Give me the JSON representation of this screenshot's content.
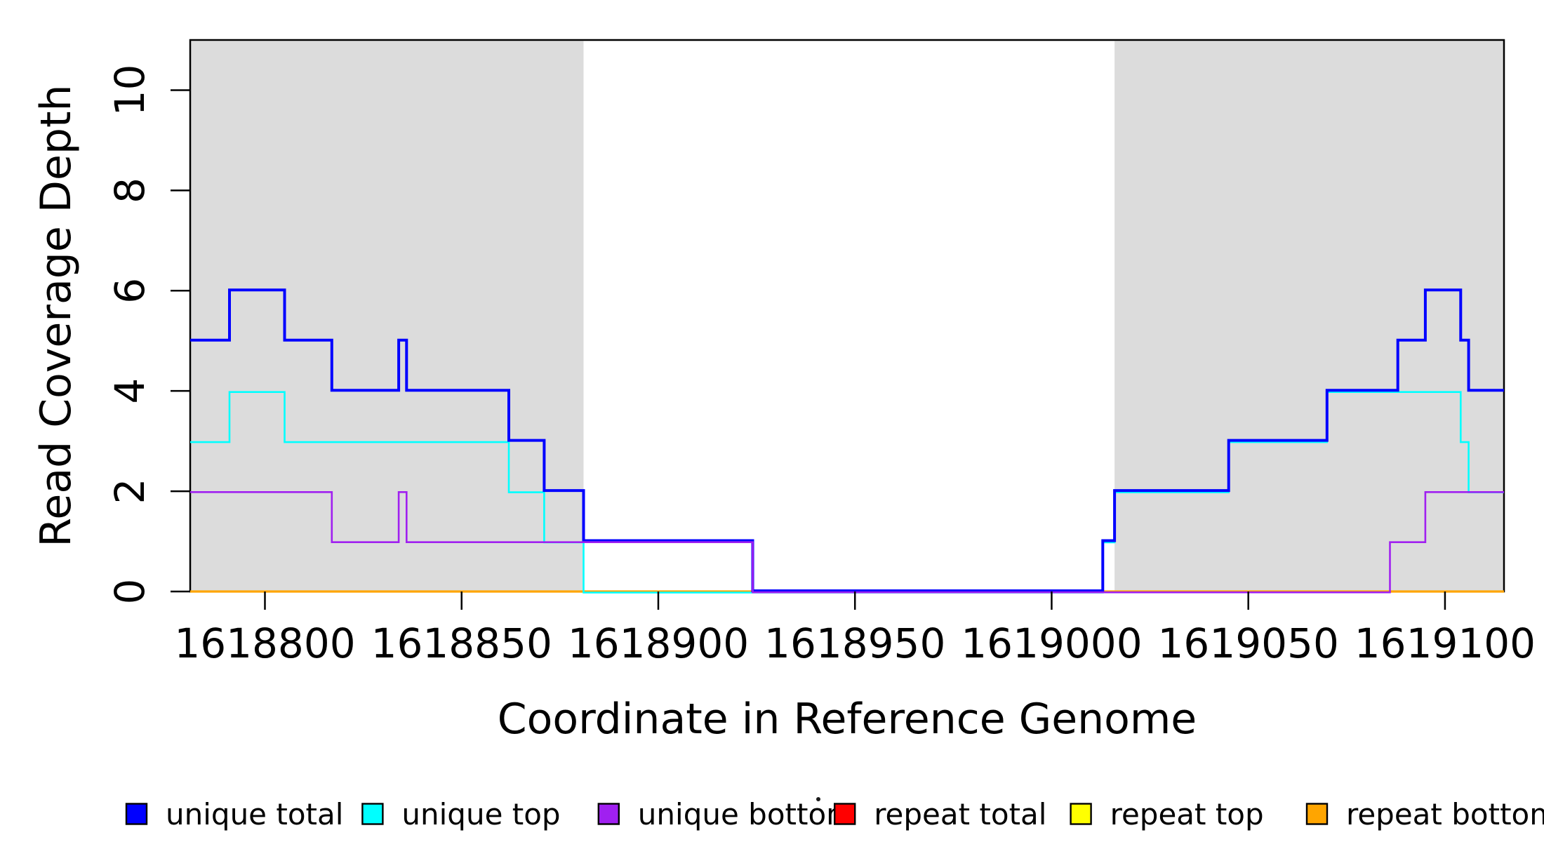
{
  "figure": {
    "background": "#ffffff",
    "plot_bg": "#ffffff",
    "band_color": "#DCDCDC",
    "border_color": "#000000",
    "text_color": "#000000"
  },
  "chart_data": {
    "type": "line",
    "subtype": "step-coverage-plot",
    "title": "",
    "xlabel": "Coordinate in Reference Genome",
    "ylabel": "Read Coverage Depth",
    "xlim": [
      1618781,
      1619115
    ],
    "ylim": [
      0,
      11
    ],
    "grid": false,
    "x_ticks": [
      1618800,
      1618850,
      1618900,
      1618950,
      1619000,
      1619050,
      1619100
    ],
    "y_ticks": [
      0,
      2,
      4,
      6,
      8,
      10
    ],
    "shaded_regions": [
      {
        "name": "left-repeat-region",
        "from": 1618781,
        "to": 1618881,
        "color": "#DCDCDC"
      },
      {
        "name": "right-repeat-region",
        "from": 1619016,
        "to": 1619115,
        "color": "#DCDCDC"
      }
    ],
    "series": [
      {
        "name": "repeat total",
        "color": "#FF0000",
        "lwd": 2.6,
        "steps": [
          {
            "from": 1618781,
            "to": 1619115,
            "value": 0
          }
        ]
      },
      {
        "name": "repeat top",
        "color": "#FFFF00",
        "lwd": 2.6,
        "steps": [
          {
            "from": 1618781,
            "to": 1619115,
            "value": 0
          }
        ]
      },
      {
        "name": "repeat bottom",
        "color": "#FFA500",
        "lwd": 3.2,
        "steps": [
          {
            "from": 1618781,
            "to": 1619115,
            "value": 0
          }
        ]
      },
      {
        "name": "unique top",
        "color": "#00FFFF",
        "lwd": 2.6,
        "steps": [
          {
            "from": 1618781,
            "to": 1618791,
            "value": 3
          },
          {
            "from": 1618791,
            "to": 1618805,
            "value": 4
          },
          {
            "from": 1618805,
            "to": 1618862,
            "value": 3
          },
          {
            "from": 1618862,
            "to": 1618871,
            "value": 2
          },
          {
            "from": 1618871,
            "to": 1618881,
            "value": 1
          },
          {
            "from": 1618881,
            "to": 1619013,
            "value": 0
          },
          {
            "from": 1619013,
            "to": 1619016,
            "value": 1
          },
          {
            "from": 1619016,
            "to": 1619045,
            "value": 2
          },
          {
            "from": 1619045,
            "to": 1619070,
            "value": 3
          },
          {
            "from": 1619070,
            "to": 1619104,
            "value": 4
          },
          {
            "from": 1619104,
            "to": 1619106,
            "value": 3
          },
          {
            "from": 1619106,
            "to": 1619115,
            "value": 2
          }
        ]
      },
      {
        "name": "unique total",
        "color": "#0000FF",
        "lwd": 4,
        "steps": [
          {
            "from": 1618781,
            "to": 1618791,
            "value": 5
          },
          {
            "from": 1618791,
            "to": 1618805,
            "value": 6
          },
          {
            "from": 1618805,
            "to": 1618817,
            "value": 5
          },
          {
            "from": 1618817,
            "to": 1618834,
            "value": 4
          },
          {
            "from": 1618834,
            "to": 1618836,
            "value": 5
          },
          {
            "from": 1618836,
            "to": 1618862,
            "value": 4
          },
          {
            "from": 1618862,
            "to": 1618871,
            "value": 3
          },
          {
            "from": 1618871,
            "to": 1618881,
            "value": 2
          },
          {
            "from": 1618881,
            "to": 1618924,
            "value": 1
          },
          {
            "from": 1618924,
            "to": 1619013,
            "value": 0
          },
          {
            "from": 1619013,
            "to": 1619016,
            "value": 1
          },
          {
            "from": 1619016,
            "to": 1619045,
            "value": 2
          },
          {
            "from": 1619045,
            "to": 1619070,
            "value": 3
          },
          {
            "from": 1619070,
            "to": 1619088,
            "value": 4
          },
          {
            "from": 1619088,
            "to": 1619095,
            "value": 5
          },
          {
            "from": 1619095,
            "to": 1619104,
            "value": 6
          },
          {
            "from": 1619104,
            "to": 1619106,
            "value": 5
          },
          {
            "from": 1619106,
            "to": 1619115,
            "value": 4
          }
        ]
      },
      {
        "name": "unique bottom",
        "color": "#A020F0",
        "lwd": 2.6,
        "steps": [
          {
            "from": 1618781,
            "to": 1618817,
            "value": 2
          },
          {
            "from": 1618817,
            "to": 1618834,
            "value": 1
          },
          {
            "from": 1618834,
            "to": 1618836,
            "value": 2
          },
          {
            "from": 1618836,
            "to": 1618924,
            "value": 1
          },
          {
            "from": 1618924,
            "to": 1619086,
            "value": 0
          },
          {
            "from": 1619086,
            "to": 1619095,
            "value": 1
          },
          {
            "from": 1619095,
            "to": 1619115,
            "value": 2
          }
        ]
      }
    ],
    "legend": {
      "position": "bottom",
      "entries": [
        {
          "label": "unique total",
          "color": "#0000FF"
        },
        {
          "label": "unique top",
          "color": "#00FFFF"
        },
        {
          "label": "unique bottom",
          "color": "#A020F0"
        },
        {
          "label": "repeat total",
          "color": "#FF0000"
        },
        {
          "label": "repeat top",
          "color": "#FFFF00"
        },
        {
          "label": "repeat bottom",
          "color": "#FFA500"
        }
      ],
      "stray_dot": {
        "x": 1166,
        "y": 1139
      }
    }
  }
}
